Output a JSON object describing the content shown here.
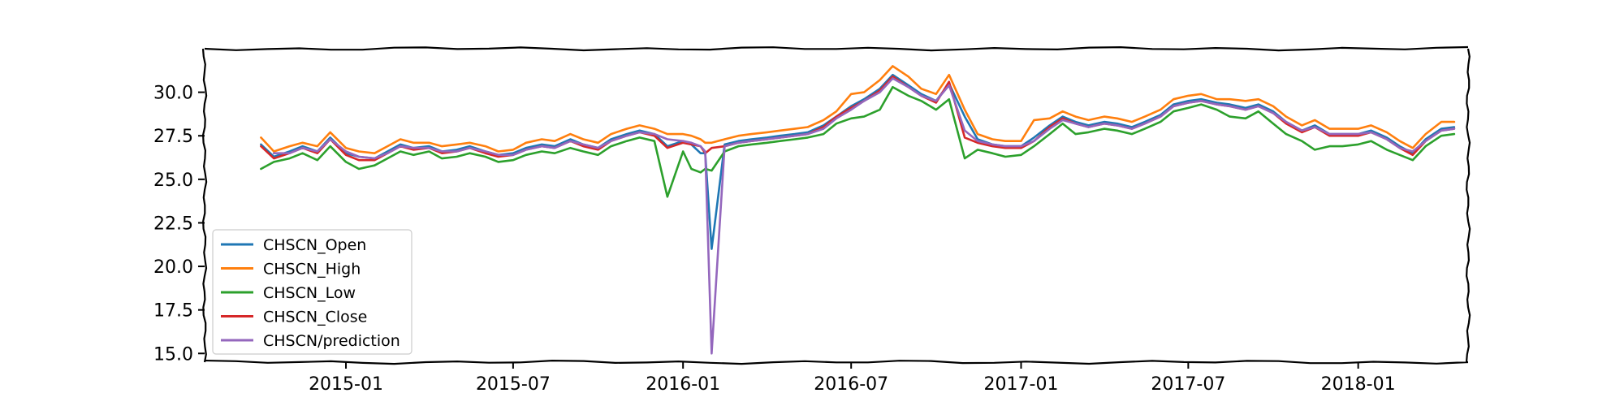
{
  "chart_data": {
    "type": "line",
    "title": "",
    "xlabel": "",
    "ylabel": "",
    "x_range": [
      "2014-08-01",
      "2018-04-30"
    ],
    "ylim": [
      14.5,
      32.5
    ],
    "y_ticks": [
      "15.0",
      "17.5",
      "20.0",
      "22.5",
      "25.0",
      "27.5",
      "30.0"
    ],
    "y_tick_values": [
      15,
      17.5,
      20,
      22.5,
      25,
      27.5,
      30
    ],
    "x_ticks": [
      "2015-01",
      "2015-07",
      "2016-01",
      "2016-07",
      "2017-01",
      "2017-07",
      "2018-01"
    ],
    "x_tick_dates": [
      "2015-01-01",
      "2015-07-01",
      "2016-01-01",
      "2016-07-01",
      "2017-01-01",
      "2017-07-01",
      "2018-01-01"
    ],
    "grid": false,
    "legend_position": "lower-left",
    "x": [
      "2014-10-01",
      "2014-10-15",
      "2014-11-01",
      "2014-11-15",
      "2014-12-01",
      "2014-12-15",
      "2015-01-01",
      "2015-01-15",
      "2015-02-01",
      "2015-02-15",
      "2015-03-01",
      "2015-03-15",
      "2015-04-01",
      "2015-04-15",
      "2015-05-01",
      "2015-05-15",
      "2015-06-01",
      "2015-06-15",
      "2015-07-01",
      "2015-07-15",
      "2015-08-01",
      "2015-08-15",
      "2015-09-01",
      "2015-09-15",
      "2015-10-01",
      "2015-10-15",
      "2015-11-01",
      "2015-11-15",
      "2015-12-01",
      "2015-12-15",
      "2016-01-01",
      "2016-01-10",
      "2016-01-20",
      "2016-01-25",
      "2016-02-01",
      "2016-02-15",
      "2016-03-01",
      "2016-03-15",
      "2016-04-01",
      "2016-04-15",
      "2016-05-01",
      "2016-05-15",
      "2016-06-01",
      "2016-06-15",
      "2016-07-01",
      "2016-07-15",
      "2016-08-01",
      "2016-08-15",
      "2016-09-01",
      "2016-09-15",
      "2016-10-01",
      "2016-10-15",
      "2016-11-01",
      "2016-11-15",
      "2016-12-01",
      "2016-12-15",
      "2017-01-01",
      "2017-01-15",
      "2017-02-01",
      "2017-02-15",
      "2017-03-01",
      "2017-03-15",
      "2017-04-01",
      "2017-04-15",
      "2017-05-01",
      "2017-05-15",
      "2017-06-01",
      "2017-06-15",
      "2017-07-01",
      "2017-07-15",
      "2017-08-01",
      "2017-08-15",
      "2017-09-01",
      "2017-09-15",
      "2017-10-01",
      "2017-10-15",
      "2017-11-01",
      "2017-11-15",
      "2017-12-01",
      "2017-12-15",
      "2018-01-01",
      "2018-01-15",
      "2018-02-01",
      "2018-02-15",
      "2018-03-01",
      "2018-03-15",
      "2018-04-01",
      "2018-04-15"
    ],
    "series": [
      {
        "name": "CHSCN_Open",
        "color": "#1f77b4",
        "values": [
          27.0,
          26.3,
          26.6,
          26.9,
          26.6,
          27.4,
          26.5,
          26.3,
          26.2,
          26.6,
          27.0,
          26.8,
          26.9,
          26.6,
          26.7,
          26.9,
          26.6,
          26.4,
          26.5,
          26.8,
          27.0,
          26.9,
          27.3,
          27.0,
          26.8,
          27.3,
          27.6,
          27.8,
          27.6,
          26.9,
          27.2,
          27.0,
          26.5,
          26.5,
          21.0,
          27.0,
          27.2,
          27.3,
          27.4,
          27.5,
          27.6,
          27.7,
          28.1,
          28.6,
          29.2,
          29.6,
          30.2,
          31.0,
          30.4,
          29.9,
          29.5,
          30.5,
          28.6,
          27.3,
          27.0,
          26.9,
          26.9,
          27.4,
          28.1,
          28.6,
          28.3,
          28.1,
          28.3,
          28.2,
          28.0,
          28.3,
          28.7,
          29.3,
          29.5,
          29.6,
          29.4,
          29.3,
          29.1,
          29.3,
          28.9,
          28.3,
          27.8,
          28.1,
          27.6,
          27.6,
          27.6,
          27.8,
          27.4,
          26.9,
          26.5,
          27.3,
          27.9,
          28.0
        ]
      },
      {
        "name": "CHSCN_High",
        "color": "#ff7f0e",
        "values": [
          27.4,
          26.6,
          26.9,
          27.1,
          26.9,
          27.7,
          26.8,
          26.6,
          26.5,
          26.9,
          27.3,
          27.1,
          27.1,
          26.9,
          27.0,
          27.1,
          26.9,
          26.6,
          26.7,
          27.1,
          27.3,
          27.2,
          27.6,
          27.3,
          27.1,
          27.6,
          27.9,
          28.1,
          27.9,
          27.6,
          27.6,
          27.5,
          27.3,
          27.1,
          27.1,
          27.3,
          27.5,
          27.6,
          27.7,
          27.8,
          27.9,
          28.0,
          28.4,
          28.9,
          29.9,
          30.0,
          30.7,
          31.5,
          30.9,
          30.2,
          29.9,
          31.0,
          29.0,
          27.6,
          27.3,
          27.2,
          27.2,
          28.4,
          28.5,
          28.9,
          28.6,
          28.4,
          28.6,
          28.5,
          28.3,
          28.6,
          29.0,
          29.6,
          29.8,
          29.9,
          29.6,
          29.6,
          29.5,
          29.6,
          29.2,
          28.6,
          28.1,
          28.4,
          27.9,
          27.9,
          27.9,
          28.1,
          27.7,
          27.2,
          26.8,
          27.6,
          28.3,
          28.3
        ]
      },
      {
        "name": "CHSCN_Low",
        "color": "#2ca02c",
        "values": [
          25.6,
          26.0,
          26.2,
          26.5,
          26.1,
          26.9,
          26.0,
          25.6,
          25.8,
          26.2,
          26.6,
          26.4,
          26.6,
          26.2,
          26.3,
          26.5,
          26.3,
          26.0,
          26.1,
          26.4,
          26.6,
          26.5,
          26.8,
          26.6,
          26.4,
          26.9,
          27.2,
          27.4,
          27.2,
          24.0,
          26.6,
          25.6,
          25.4,
          25.6,
          25.5,
          26.6,
          26.9,
          27.0,
          27.1,
          27.2,
          27.3,
          27.4,
          27.6,
          28.2,
          28.5,
          28.6,
          29.0,
          30.3,
          29.8,
          29.5,
          29.0,
          29.6,
          26.2,
          26.7,
          26.5,
          26.3,
          26.4,
          26.9,
          27.6,
          28.2,
          27.6,
          27.7,
          27.9,
          27.8,
          27.6,
          27.9,
          28.3,
          28.9,
          29.1,
          29.3,
          29.0,
          28.6,
          28.5,
          28.9,
          28.2,
          27.6,
          27.2,
          26.7,
          26.9,
          26.9,
          27.0,
          27.2,
          26.7,
          26.4,
          26.1,
          26.9,
          27.5,
          27.6
        ]
      },
      {
        "name": "CHSCN_Close",
        "color": "#d62728",
        "values": [
          26.9,
          26.2,
          26.5,
          26.8,
          26.5,
          27.3,
          26.4,
          26.1,
          26.1,
          26.5,
          26.9,
          26.7,
          26.8,
          26.5,
          26.6,
          26.8,
          26.5,
          26.3,
          26.4,
          26.7,
          26.9,
          26.8,
          27.2,
          26.9,
          26.7,
          27.2,
          27.5,
          27.7,
          27.5,
          26.8,
          27.1,
          27.0,
          26.9,
          26.5,
          26.8,
          26.9,
          27.1,
          27.2,
          27.3,
          27.4,
          27.5,
          27.6,
          28.0,
          28.6,
          29.1,
          29.5,
          30.1,
          30.9,
          30.3,
          29.8,
          29.4,
          30.6,
          27.4,
          27.1,
          26.9,
          26.8,
          26.8,
          27.2,
          28.0,
          28.5,
          28.2,
          28.0,
          28.2,
          28.1,
          27.9,
          28.2,
          28.6,
          29.2,
          29.4,
          29.5,
          29.3,
          29.2,
          29.0,
          29.2,
          28.8,
          28.2,
          27.7,
          28.0,
          27.5,
          27.5,
          27.5,
          27.7,
          27.3,
          26.8,
          26.4,
          27.2,
          27.8,
          27.9
        ]
      },
      {
        "name": "CHSCN/prediction",
        "color": "#9467bd",
        "values": [
          null,
          26.5,
          26.5,
          26.8,
          26.6,
          27.3,
          26.6,
          26.3,
          26.2,
          26.5,
          26.9,
          26.8,
          26.8,
          26.6,
          26.6,
          26.8,
          26.6,
          26.4,
          26.4,
          26.7,
          26.9,
          26.8,
          27.2,
          27.0,
          26.8,
          27.2,
          27.5,
          27.7,
          27.6,
          27.3,
          27.2,
          27.1,
          26.9,
          26.6,
          15.0,
          26.9,
          27.1,
          27.2,
          27.3,
          27.4,
          27.5,
          27.6,
          27.9,
          28.5,
          29.0,
          29.5,
          30.0,
          30.8,
          30.3,
          29.8,
          29.5,
          30.4,
          27.8,
          27.2,
          27.0,
          26.9,
          26.9,
          27.2,
          27.9,
          28.4,
          28.2,
          28.0,
          28.2,
          28.1,
          27.9,
          28.2,
          28.6,
          29.2,
          29.4,
          29.5,
          29.3,
          29.2,
          29.0,
          29.2,
          28.8,
          28.3,
          27.8,
          28.0,
          27.6,
          27.6,
          27.6,
          27.7,
          27.3,
          26.8,
          26.6,
          27.2,
          27.8,
          27.9
        ]
      }
    ]
  }
}
